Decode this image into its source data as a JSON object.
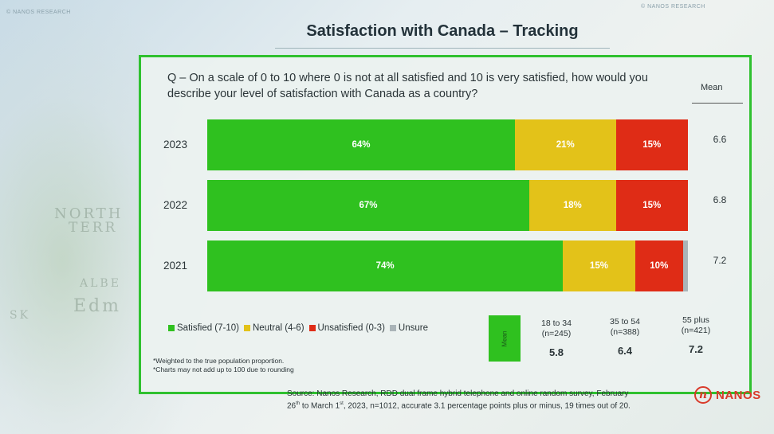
{
  "slide": {
    "brand_left": "© NANOS RESEARCH",
    "brand_right": "© NANOS RESEARCH",
    "title": "Satisfaction with Canada – Tracking",
    "map_words": [
      "NORTH",
      "TERR",
      "ALBE",
      "Edm",
      "SK"
    ]
  },
  "question": "Q – On a scale of 0 to 10 where 0 is not at all satisfied and 10 is very satisfied, how would you describe your level of satisfaction with Canada as a country?",
  "mean_header": "Mean",
  "chart_data": {
    "type": "bar",
    "orientation": "horizontal-stacked",
    "categories": [
      "2023",
      "2022",
      "2021"
    ],
    "series": [
      {
        "name": "Satisfied (7-10)",
        "color": "#2fc11f",
        "values": [
          64,
          67,
          74
        ],
        "labels": [
          "64%",
          "67%",
          "74%"
        ]
      },
      {
        "name": "Neutral (4-6)",
        "color": "#e3c219",
        "values": [
          21,
          18,
          15
        ],
        "labels": [
          "21%",
          "18%",
          "15%"
        ]
      },
      {
        "name": "Unsatisfied (0-3)",
        "color": "#df2c16",
        "values": [
          15,
          15,
          10
        ],
        "labels": [
          "15%",
          "15%",
          "10%"
        ]
      },
      {
        "name": "Unsure",
        "color": "#aab4b8",
        "values": [
          0,
          0,
          1
        ],
        "labels": [
          "",
          "",
          ""
        ]
      }
    ],
    "means": [
      "6.6",
      "6.8",
      "7.2"
    ],
    "xlim": [
      0,
      100
    ]
  },
  "legend": {
    "items": [
      {
        "label": "Satisfied (7-10)",
        "color": "#2fc11f"
      },
      {
        "label": "Neutral (4-6)",
        "color": "#e3c219"
      },
      {
        "label": "Unsatisfied (0-3)",
        "color": "#df2c16"
      },
      {
        "label": "Unsure",
        "color": "#aab4b8"
      }
    ]
  },
  "notes": [
    "*Weighted to the true population proportion.",
    "*Charts may not add up to 100 due to rounding"
  ],
  "age_breakdown": {
    "box_label": "Mean",
    "groups": [
      {
        "label": "18 to 34",
        "n": "(n=245)",
        "mean": "5.8"
      },
      {
        "label": "35 to 54",
        "n": "(n=388)",
        "mean": "6.4"
      },
      {
        "label": "55 plus",
        "n": "(n=421)",
        "mean": "7.2"
      }
    ]
  },
  "source": {
    "line1": "Source: Nanos Research, RDD dual frame hybrid telephone and online random survey, February",
    "day1": "26",
    "sup1": "th",
    "mid": " to March 1",
    "sup2": "st",
    "rest": ", 2023, n=1012, accurate 3.1 percentage points plus or minus, 19 times out of 20."
  },
  "logo": {
    "mark": "n",
    "text": "NANOS"
  }
}
